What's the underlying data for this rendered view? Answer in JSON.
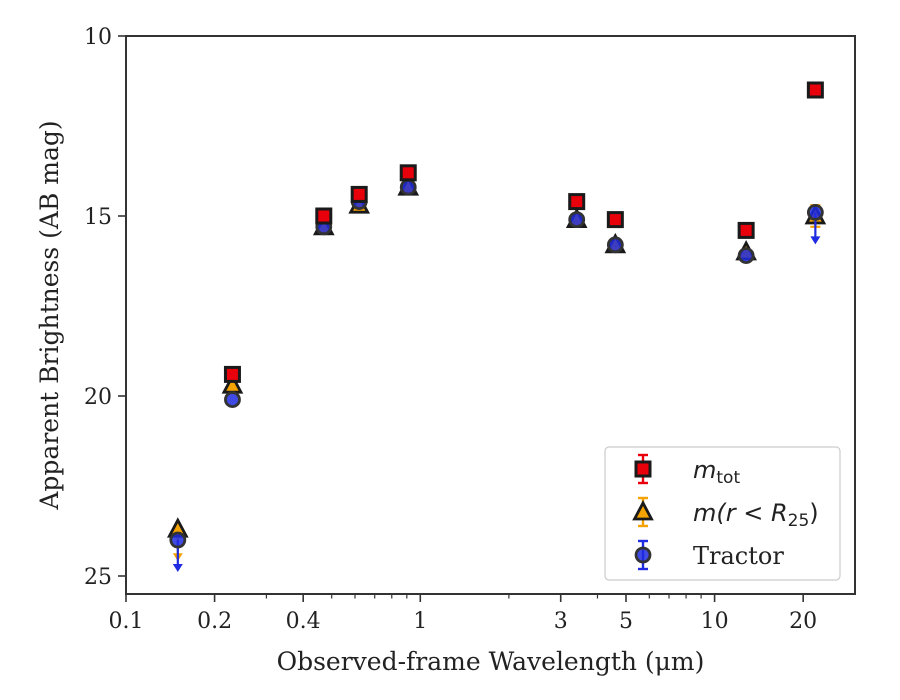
{
  "chart_data": {
    "type": "scatter",
    "xlabel": "Observed-frame Wavelength (μm)",
    "ylabel": "Apparent Brightness (AB mag)",
    "x_scale": "log",
    "xlim": [
      0.1,
      30
    ],
    "ylim": [
      25.5,
      10
    ],
    "y_inverted": true,
    "x_ticks": [
      0.1,
      0.2,
      0.4,
      1,
      3,
      5,
      10,
      20
    ],
    "x_tick_labels": [
      "0.1",
      "0.2",
      "0.4",
      "1",
      "3",
      "5",
      "10",
      "20"
    ],
    "y_ticks": [
      10,
      15,
      20,
      25
    ],
    "y_tick_labels": [
      "10",
      "15",
      "20",
      "25"
    ],
    "legend_placement": "lower-right",
    "series": [
      {
        "name": "m_tot",
        "label_parts": {
          "base": "m",
          "sub": "tot"
        },
        "marker": "square",
        "color": "#e8000b",
        "edge_color": "#1a1a1a",
        "points": [
          {
            "x": 0.23,
            "y": 19.4
          },
          {
            "x": 0.47,
            "y": 15.0
          },
          {
            "x": 0.62,
            "y": 14.4
          },
          {
            "x": 0.91,
            "y": 13.8
          },
          {
            "x": 3.4,
            "y": 14.6
          },
          {
            "x": 4.6,
            "y": 15.1
          },
          {
            "x": 12.8,
            "y": 15.4
          },
          {
            "x": 22.0,
            "y": 11.5
          }
        ]
      },
      {
        "name": "m(r < R_25)",
        "label_parts": {
          "pre": "m(r < R",
          "sub": "25",
          "post": ")"
        },
        "marker": "triangle",
        "color": "#f5a300",
        "edge_color": "#1a1a1a",
        "points": [
          {
            "x": 0.15,
            "y": 23.7,
            "upper_limit": true
          },
          {
            "x": 0.23,
            "y": 19.7
          },
          {
            "x": 0.47,
            "y": 15.3
          },
          {
            "x": 0.62,
            "y": 14.7
          },
          {
            "x": 0.91,
            "y": 14.2
          },
          {
            "x": 3.4,
            "y": 15.1
          },
          {
            "x": 4.6,
            "y": 15.8
          },
          {
            "x": 12.8,
            "y": 16.0
          },
          {
            "x": 22.0,
            "y": 15.0,
            "err": 0.3
          }
        ]
      },
      {
        "name": "Tractor",
        "marker": "circle",
        "color": "#1f2be0",
        "edge_color": "#333333",
        "points": [
          {
            "x": 0.15,
            "y": 24.0,
            "upper_limit": true
          },
          {
            "x": 0.23,
            "y": 20.1
          },
          {
            "x": 0.47,
            "y": 15.3
          },
          {
            "x": 0.62,
            "y": 14.6
          },
          {
            "x": 0.91,
            "y": 14.2
          },
          {
            "x": 3.4,
            "y": 15.1
          },
          {
            "x": 4.6,
            "y": 15.8
          },
          {
            "x": 12.8,
            "y": 16.1
          },
          {
            "x": 22.0,
            "y": 14.9,
            "upper_limit": true
          }
        ]
      }
    ]
  }
}
